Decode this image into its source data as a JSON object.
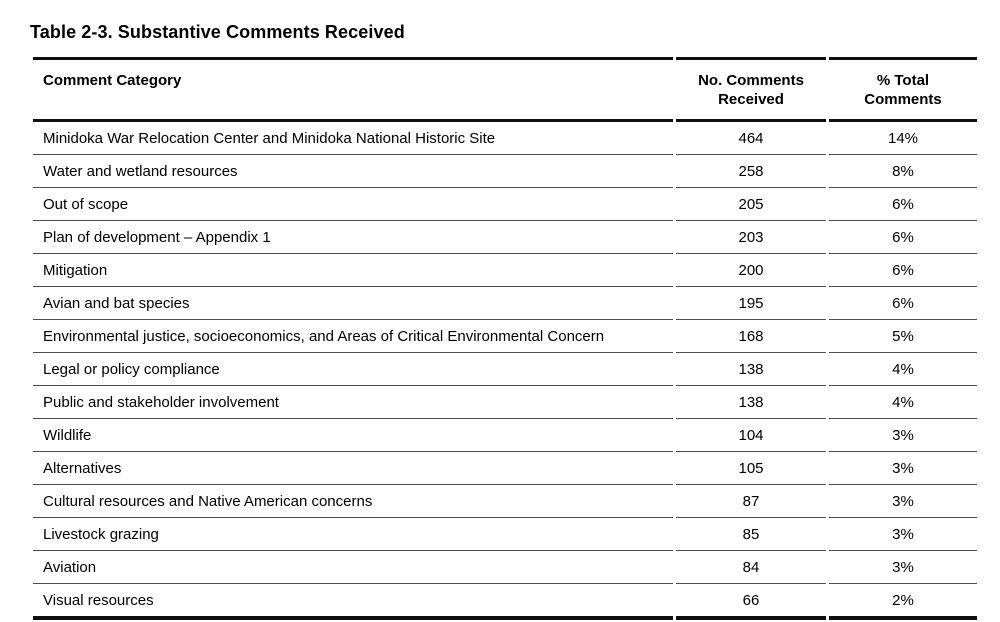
{
  "page": {
    "title": "Table 2-3. Substantive Comments Received"
  },
  "table": {
    "headers": {
      "category": "Comment Category",
      "count": "No. Comments Received",
      "percent": "% Total Comments"
    },
    "rows": [
      {
        "category": "Minidoka War Relocation Center and Minidoka National Historic Site",
        "count": "464",
        "percent": "14%"
      },
      {
        "category": "Water and wetland resources",
        "count": "258",
        "percent": "8%"
      },
      {
        "category": "Out of scope",
        "count": "205",
        "percent": "6%"
      },
      {
        "category": "Plan of development – Appendix 1",
        "count": "203",
        "percent": "6%"
      },
      {
        "category": "Mitigation",
        "count": "200",
        "percent": "6%"
      },
      {
        "category": "Avian and bat species",
        "count": "195",
        "percent": "6%"
      },
      {
        "category": "Environmental justice, socioeconomics, and Areas of Critical Environmental Concern",
        "count": "168",
        "percent": "5%"
      },
      {
        "category": "Legal or policy compliance",
        "count": "138",
        "percent": "4%"
      },
      {
        "category": "Public and stakeholder involvement",
        "count": "138",
        "percent": "4%"
      },
      {
        "category": "Wildlife",
        "count": "104",
        "percent": "3%"
      },
      {
        "category": "Alternatives",
        "count": "105",
        "percent": "3%"
      },
      {
        "category": "Cultural resources and Native American concerns",
        "count": "87",
        "percent": "3%"
      },
      {
        "category": "Livestock grazing",
        "count": "85",
        "percent": "3%"
      },
      {
        "category": "Aviation",
        "count": "84",
        "percent": "3%"
      },
      {
        "category": "Visual resources",
        "count": "66",
        "percent": "2%"
      }
    ],
    "border_colors": {
      "thick_rule": "#0f0f0f",
      "thin_rule": "#4c4c4c"
    }
  }
}
